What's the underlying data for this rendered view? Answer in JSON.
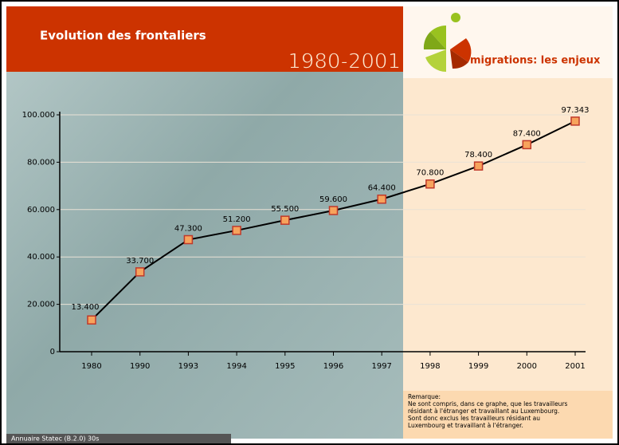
{
  "chart_data": {
    "type": "line",
    "title": "Evolution des frontaliers",
    "subtitle": "1980-2001",
    "logo": "migrations: les enjeux",
    "categories": [
      "1980",
      "1990",
      "1993",
      "1994",
      "1995",
      "1996",
      "1997",
      "1998",
      "1999",
      "2000",
      "2001"
    ],
    "values": [
      13400,
      33700,
      47300,
      51200,
      55500,
      59600,
      64400,
      70800,
      78400,
      87400,
      97343
    ],
    "value_labels": [
      "13.400",
      "33.700",
      "47.300",
      "51.200",
      "55.500",
      "59.600",
      "64.400",
      "70.800",
      "78.400",
      "87.400",
      "97.343"
    ],
    "color": "#f7a35c",
    "ylim": [
      0,
      100000
    ],
    "yticks": [
      0,
      {
        "value": 20000,
        "label": "20.000"
      },
      {
        "value": 40000,
        "label": "40.000"
      },
      {
        "value": 60000,
        "label": "60.000"
      },
      {
        "value": 80000,
        "label": "80.000"
      },
      {
        "value": 100000,
        "label": "100.000"
      }
    ],
    "grid": true,
    "note": {
      "title": "Remarque:",
      "lines": [
        "Ne sont compris, dans ce graphe, que les travailleurs",
        "résidant à l'étranger et travaillant au Luxembourg.",
        "Sont donc exclus les travailleurs résidant au",
        "Luxembourg et travaillant à l'étranger."
      ]
    },
    "source": "Annuaire Statec (B.2.0) 30s"
  }
}
